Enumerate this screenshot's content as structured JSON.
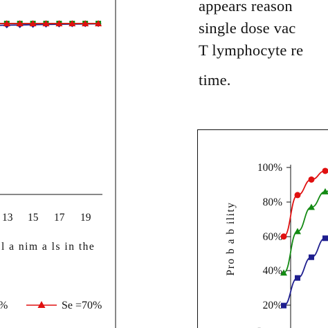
{
  "paragraph": {
    "lines": [
      "appears reason",
      "single dose vac",
      "T lymphocyte re",
      "time."
    ]
  },
  "left_chart": {
    "x_tick_labels": [
      "13",
      "15",
      "17",
      "19"
    ],
    "x_axis_label_partial": "l  a nim a ls in the",
    "legend": {
      "cut_entry_text": "%",
      "entry_label": "Se =70%"
    },
    "colors": {
      "navy": "#1f1f8f",
      "red": "#e01010",
      "green": "#138a13"
    }
  },
  "chart_data": [
    {
      "type": "line",
      "title": "",
      "xlabel": "l a nim a ls in the",
      "ylabel": "",
      "x": [
        1,
        2,
        3,
        4,
        5,
        6,
        7,
        8,
        9,
        10,
        11,
        12,
        13,
        14,
        15,
        16,
        17,
        18,
        19,
        20
      ],
      "x_tick_labels": [
        "13",
        "15",
        "17",
        "19"
      ],
      "series": [
        {
          "name": "",
          "color": "#1f1f8f",
          "marker": "diamond",
          "values": [
            0.93,
            0.935,
            0.94,
            0.945,
            0.95,
            0.955,
            0.96,
            0.965,
            0.97,
            0.973,
            0.976,
            0.979,
            0.982,
            0.985,
            0.988,
            0.99,
            0.992,
            0.994,
            0.996,
            0.998
          ]
        },
        {
          "name": "Se =70%",
          "color": "#e01010",
          "marker": "triangle",
          "values": [
            1,
            1,
            1,
            1,
            1,
            1,
            1,
            1,
            1,
            1,
            1,
            1,
            1,
            1,
            1,
            1,
            1,
            1,
            1,
            1
          ]
        },
        {
          "name": "",
          "color": "#138a13",
          "marker": "square",
          "values": [
            1,
            1,
            1,
            1,
            1,
            1,
            1,
            1,
            1,
            1,
            1,
            1,
            1,
            1,
            1,
            1,
            1,
            1,
            1,
            1
          ]
        }
      ]
    },
    {
      "type": "line",
      "title": "",
      "xlabel": "",
      "ylabel": "Pro b a b ility",
      "ylim": [
        0,
        100
      ],
      "y_tick_labels": [
        "100%",
        "80%",
        "60%",
        "40%",
        "20%"
      ],
      "x": [
        1,
        2,
        3,
        4,
        5,
        6,
        7,
        8
      ],
      "series": [
        {
          "name": "",
          "color": "#e01010",
          "marker": "circle",
          "values": [
            60,
            84,
            93,
            98,
            99.5,
            100,
            100,
            100
          ]
        },
        {
          "name": "",
          "color": "#138a13",
          "marker": "triangle",
          "values": [
            39,
            63,
            77,
            86,
            91,
            95,
            97,
            98
          ]
        },
        {
          "name": "",
          "color": "#1f1f8f",
          "marker": "square",
          "values": [
            20,
            36,
            48,
            59,
            67,
            73,
            78,
            82
          ]
        }
      ]
    }
  ]
}
